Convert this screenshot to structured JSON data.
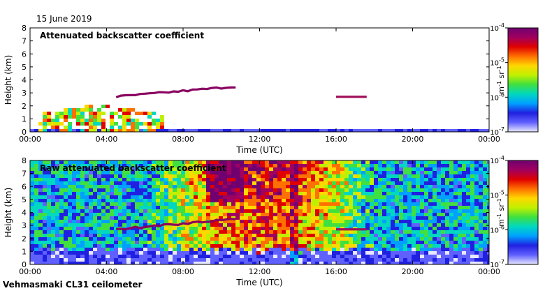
{
  "header": {
    "date": "15 June 2019"
  },
  "footer": {
    "instrument": "Vehmasmaki CL31 ceilometer"
  },
  "colorbar_unit": "m-1 sr-1",
  "colors": {
    "scale": [
      "#e8e8ff",
      "#6060ff",
      "#2020e0",
      "#00a0ff",
      "#00d8c0",
      "#40e040",
      "#c0f000",
      "#ffd800",
      "#ff7000",
      "#e00000",
      "#a00060",
      "#700070"
    ]
  },
  "chart_data": [
    {
      "type": "heatmap",
      "title": "Attenuated backscatter coefficient",
      "xlabel": "Time (UTC)",
      "ylabel": "Height (km)",
      "xlim": [
        0,
        24
      ],
      "ylim": [
        0,
        8
      ],
      "x_ticks": [
        0,
        4,
        8,
        12,
        16,
        20,
        24
      ],
      "x_tick_labels": [
        "00:00",
        "04:00",
        "08:00",
        "12:00",
        "16:00",
        "20:00",
        "00:00"
      ],
      "y_ticks": [
        0,
        1,
        2,
        3,
        4,
        5,
        6,
        7,
        8
      ],
      "colorbar": {
        "scale": "log",
        "range": [
          1e-07,
          0.0001
        ],
        "tick_labels": [
          "10-7",
          "10-6",
          "10-5",
          "10-4"
        ]
      },
      "features": [
        {
          "name": "surface aerosol layer",
          "t_start": 0,
          "t_end": 24,
          "top_km": 0.4,
          "level": "1e-7"
        },
        {
          "name": "morning boundary layer",
          "t_start": 0.3,
          "t_end": 6.8,
          "top_km": 2.4,
          "level": "1e-6 to 1e-5"
        },
        {
          "name": "elevated layer",
          "t_start": 4.5,
          "t_end": 10.8,
          "height_km": [
            2.7,
            3.5
          ],
          "level": "1e-4"
        },
        {
          "name": "cloud",
          "t_start": 16,
          "t_end": 17.6,
          "height_km": 2.7,
          "level": "1e-4"
        }
      ]
    },
    {
      "type": "heatmap",
      "title": "Raw attenuated backscatter coefficient",
      "xlabel": "Time (UTC)",
      "ylabel": "Height (km)",
      "xlim": [
        0,
        24
      ],
      "ylim": [
        0,
        8
      ],
      "x_ticks": [
        0,
        4,
        8,
        12,
        16,
        20,
        24
      ],
      "x_tick_labels": [
        "00:00",
        "04:00",
        "08:00",
        "12:00",
        "16:00",
        "20:00",
        "00:00"
      ],
      "y_ticks": [
        0,
        1,
        2,
        3,
        4,
        5,
        6,
        7,
        8
      ],
      "colorbar": {
        "scale": "log",
        "range": [
          1e-07,
          0.0001
        ],
        "tick_labels": [
          "10-7",
          "10-6",
          "10-5",
          "10-4"
        ]
      },
      "features": [
        {
          "name": "daytime noise",
          "t_start": 6,
          "t_end": 17.5,
          "level": "1e-5 to 1e-4"
        },
        {
          "name": "elevated layer",
          "t_start": 4.5,
          "t_end": 10.8,
          "height_km": [
            2.7,
            3.5
          ],
          "level": "1e-4"
        },
        {
          "name": "cloud",
          "t_start": 16,
          "t_end": 17.6,
          "height_km": 2.7,
          "level": "1e-4"
        }
      ]
    }
  ]
}
